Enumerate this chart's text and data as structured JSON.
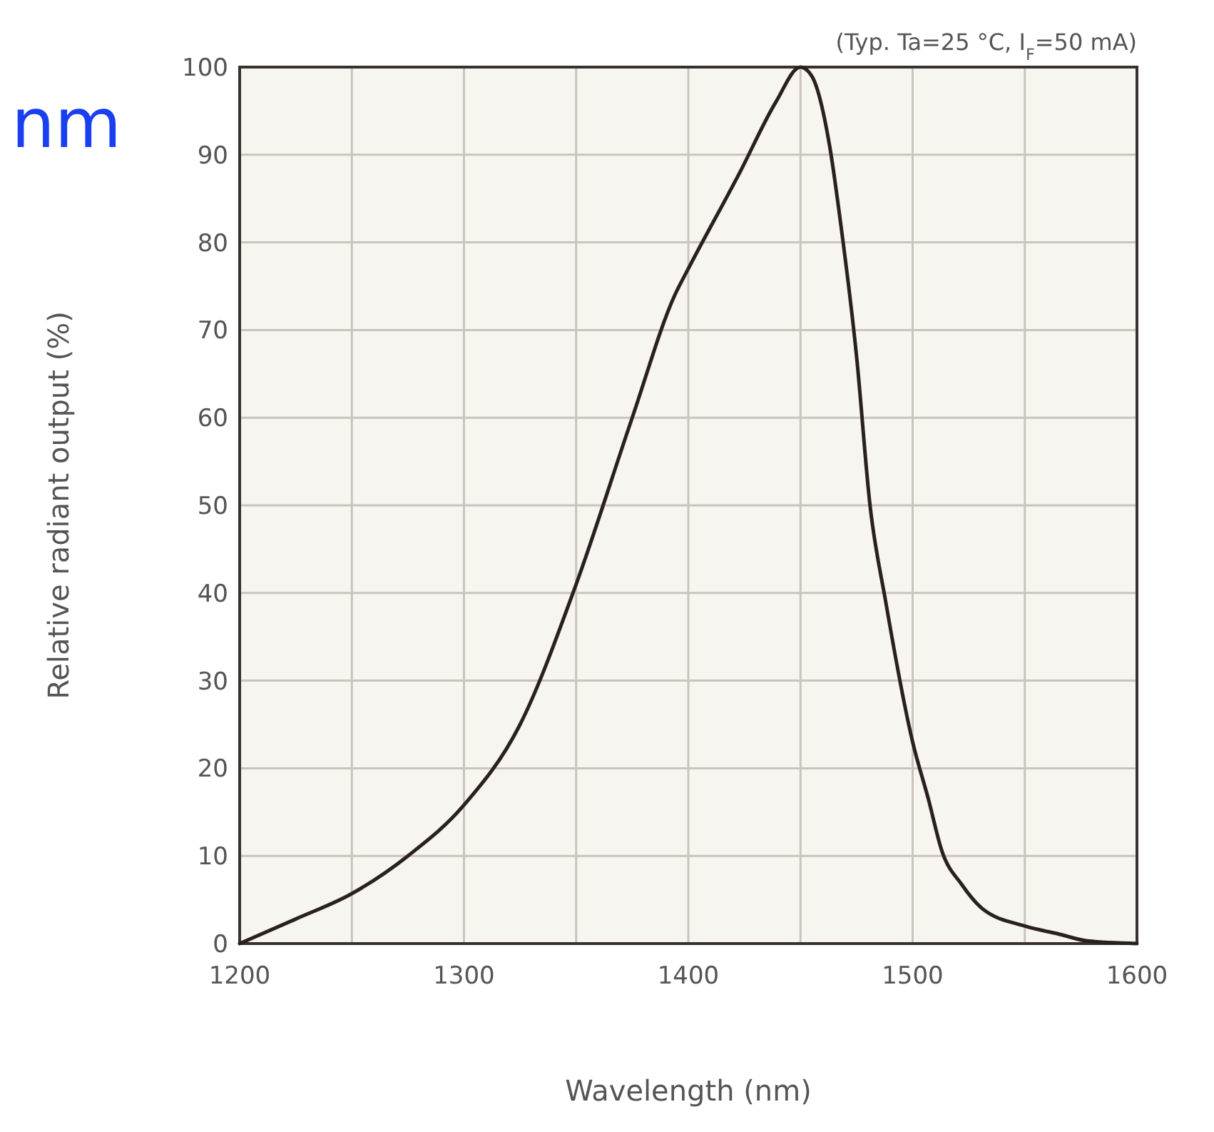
{
  "chart_data": {
    "type": "line",
    "xlabel": "Wavelength (nm)",
    "ylabel": "Relative radiant output (%)",
    "annotations": [
      "(Typ. Ta=25 °C, I$_{F}$=50 mA)",
      "nm"
    ],
    "x": [
      1200,
      1225,
      1250,
      1275,
      1300,
      1325,
      1350,
      1375,
      1394,
      1400,
      1423,
      1439,
      1450,
      1455,
      1463,
      1468,
      1475,
      1481,
      1488,
      1500,
      1507,
      1513,
      1522,
      1531,
      1550,
      1565,
      1578,
      1600
    ],
    "series": [
      {
        "color": "#2a2020",
        "values": [
          0,
          2.8,
          5.7,
          10,
          15.8,
          25,
          41,
          60,
          74,
          77,
          88,
          96,
          100,
          99,
          91,
          82,
          67,
          50,
          39,
          23,
          16.5,
          10.6,
          6.7,
          4,
          2,
          1.1,
          0.3,
          0
        ]
      }
    ],
    "xlim": [
      1200,
      1600
    ],
    "ylim": [
      0,
      100
    ],
    "xticks": [
      {
        "value": 1200,
        "label": "1200"
      },
      {
        "value": 1250,
        "label": null
      },
      {
        "value": 1300,
        "label": "1300"
      },
      {
        "value": 1350,
        "label": null
      },
      {
        "value": 1400,
        "label": "1400"
      },
      {
        "value": 1450,
        "label": null
      },
      {
        "value": 1500,
        "label": "1500"
      },
      {
        "value": 1550,
        "label": null
      },
      {
        "value": 1600,
        "label": "1600"
      }
    ],
    "yticks": [
      0,
      10,
      20,
      30,
      40,
      50,
      60,
      70,
      80,
      90,
      100
    ],
    "grid": true,
    "line_style": "solid"
  }
}
